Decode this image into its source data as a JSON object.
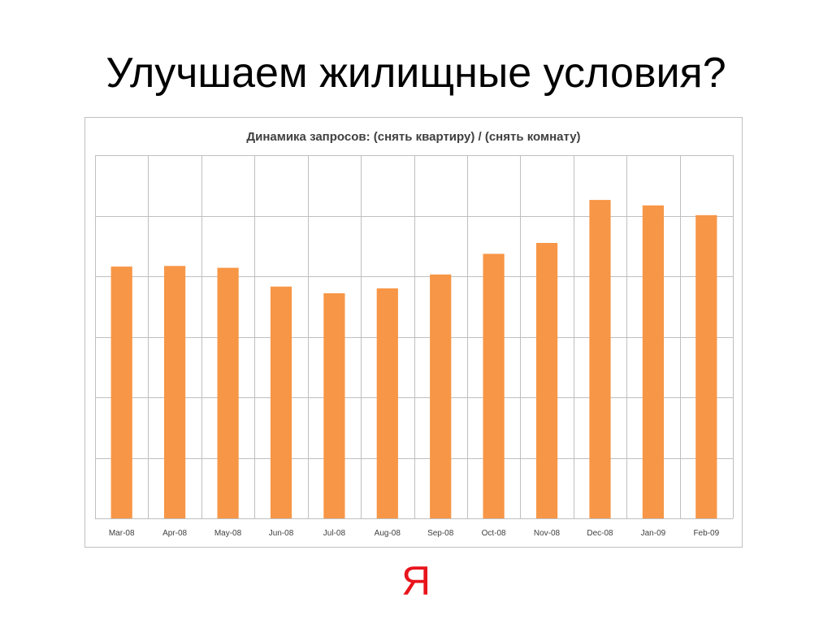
{
  "slide": {
    "title": "Улучшаем жилищные условия?",
    "logo_text": "Я",
    "logo_color": "#e8141c"
  },
  "chart_data": {
    "type": "bar",
    "title": "Динамика запросов: (снять квартиру) / (снять комнату)",
    "xlabel": "",
    "ylabel": "",
    "categories": [
      "Mar-08",
      "Apr-08",
      "May-08",
      "Jun-08",
      "Jul-08",
      "Aug-08",
      "Sep-08",
      "Oct-08",
      "Nov-08",
      "Dec-08",
      "Jan-09",
      "Feb-09"
    ],
    "values": [
      4.16,
      4.17,
      4.14,
      3.83,
      3.72,
      3.8,
      4.03,
      4.37,
      4.55,
      5.26,
      5.17,
      5.01
    ],
    "ylim": [
      0,
      6
    ],
    "y_gridlines": 6,
    "vertical_gridlines": true,
    "y_tick_labels_shown": false,
    "bar_color": "#f79646",
    "grid_color": "#bfbfbf",
    "legend": "none"
  }
}
